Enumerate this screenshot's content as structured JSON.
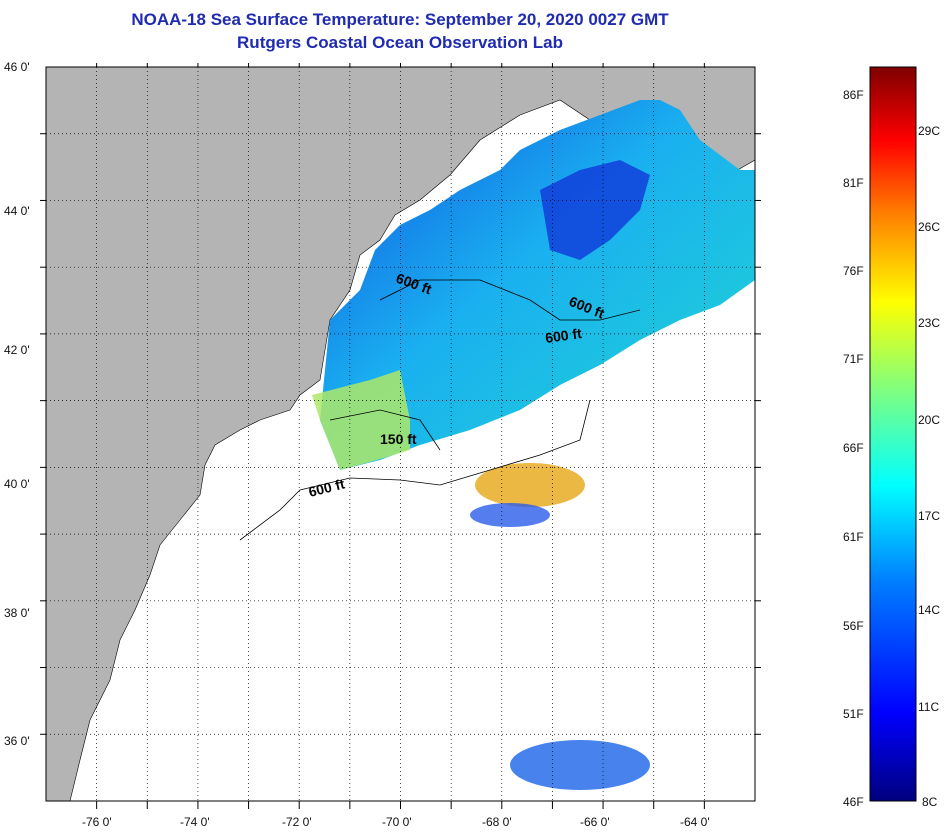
{
  "header": {
    "title": "NOAA-18 Sea Surface Temperature:  September 20, 2020 0027 GMT",
    "subtitle": "Rutgers Coastal Ocean Observation Lab"
  },
  "map": {
    "lat_range": [
      35,
      46
    ],
    "lon_range": [
      -77,
      -63
    ],
    "lat_ticks": [
      {
        "value": 46,
        "label": "46 0'"
      },
      {
        "value": 44,
        "label": "44 0'"
      },
      {
        "value": 42,
        "label": "42 0'"
      },
      {
        "value": 40,
        "label": "40 0'"
      },
      {
        "value": 38,
        "label": "38 0'"
      },
      {
        "value": 36,
        "label": "36 0'"
      }
    ],
    "lon_ticks": [
      {
        "value": -76,
        "label": "-76 0'"
      },
      {
        "value": -74,
        "label": "-74 0'"
      },
      {
        "value": -72,
        "label": "-72 0'"
      },
      {
        "value": -70,
        "label": "-70 0'"
      },
      {
        "value": -68,
        "label": "-68 0'"
      },
      {
        "value": -66,
        "label": "-66 0'"
      },
      {
        "value": -64,
        "label": "-64 0'"
      }
    ],
    "contour_labels": [
      {
        "text": "600 ft"
      },
      {
        "text": "600 ft"
      },
      {
        "text": "600 ft"
      },
      {
        "text": "150 ft"
      },
      {
        "text": "600 ft"
      }
    ],
    "colors": {
      "land": "#b4b4b4",
      "ocean": "#ffffff",
      "grid": "#000000"
    }
  },
  "colorbar": {
    "min_c": 8,
    "max_c": 31,
    "fahrenheit_labels": [
      "86F",
      "81F",
      "76F",
      "71F",
      "66F",
      "61F",
      "56F",
      "51F",
      "46F"
    ],
    "celsius_labels": [
      "29C",
      "26C",
      "23C",
      "20C",
      "17C",
      "14C",
      "11C",
      "8C"
    ],
    "colors": [
      "#00007f",
      "#0000ff",
      "#007fff",
      "#00ffff",
      "#7fff7f",
      "#ffff00",
      "#ff7f00",
      "#ff0000",
      "#7f0000"
    ]
  }
}
